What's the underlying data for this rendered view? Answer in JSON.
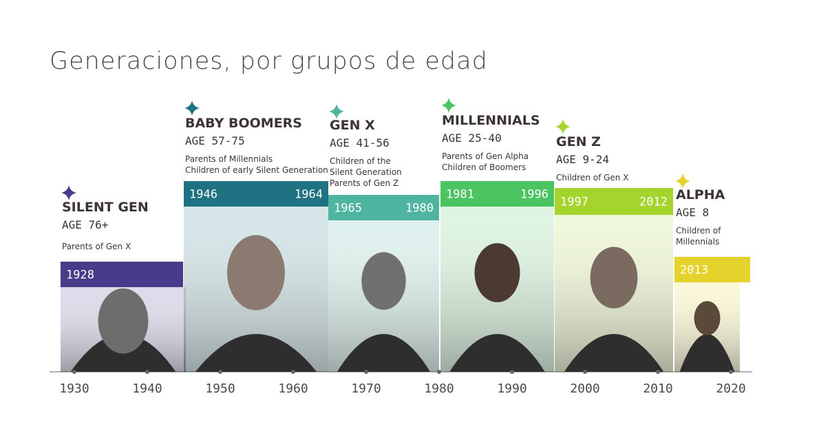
{
  "title": "Generaciones, por grupos de edad",
  "generations": [
    {
      "name": "SILENT GEN",
      "age": "AGE 76+",
      "description": [
        "Parents of Gen X"
      ],
      "years": [
        1928
      ],
      "color": "#4a3b8a"
    },
    {
      "name": "BABY BOOMERS",
      "age": "AGE 57-75",
      "description": [
        "Parents of Millennials",
        "Children of early Silent Generation"
      ],
      "years": [
        1946,
        1964
      ],
      "color": "#1e7282"
    },
    {
      "name": "GEN X",
      "age": "AGE 41-56",
      "description": [
        "Children of the",
        "Silent Generation",
        "Parents of Gen Z"
      ],
      "years": [
        1965,
        1980
      ],
      "color": "#4fb4a0"
    },
    {
      "name": "MILLENNIALS",
      "age": "AGE 25-40",
      "description": [
        "Parents of Gen Alpha",
        "Children of Boomers"
      ],
      "years": [
        1981,
        1996
      ],
      "color": "#4cc462"
    },
    {
      "name": "GEN Z",
      "age": "AGE 9-24",
      "description": [
        "Children of Gen X"
      ],
      "years": [
        1997,
        2012
      ],
      "color": "#a6d42e"
    },
    {
      "name": "ALPHA",
      "age": "AGE 8",
      "description": [
        "Children of",
        "Millennials"
      ],
      "years": [
        2013
      ],
      "color": "#e6d22c"
    }
  ],
  "axis_labels": [
    1930,
    1940,
    1950,
    1960,
    1970,
    1980,
    1990,
    2000,
    2010,
    2020
  ]
}
